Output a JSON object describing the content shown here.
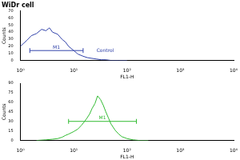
{
  "chart_data": [
    {
      "type": "line",
      "title": "WiDr cell",
      "x_label": "FL1-H",
      "y_label": "Counts",
      "log": "x",
      "grid": false,
      "xlim": [
        1,
        10000
      ],
      "xticks": [
        {
          "value": 1,
          "label": "10⁰"
        },
        {
          "value": 10,
          "label": "10¹"
        },
        {
          "value": 100,
          "label": "10²"
        },
        {
          "value": 1000,
          "label": "10³"
        },
        {
          "value": 10000,
          "label": "10⁴"
        }
      ],
      "ylim": [
        0,
        70
      ],
      "yticks": [
        0,
        10,
        20,
        30,
        40,
        50,
        60,
        70
      ],
      "series": [
        {
          "name": "Control",
          "color": "#3344aa",
          "x": [
            1,
            1.3,
            1.6,
            2,
            2.5,
            3,
            3.5,
            4,
            5,
            6,
            7,
            8,
            10,
            12,
            15,
            18,
            22,
            27,
            33,
            40,
            50,
            70,
            100
          ],
          "values": [
            20,
            28,
            35,
            38,
            44,
            42,
            46,
            40,
            37,
            30,
            26,
            20,
            14,
            9,
            6,
            4,
            3,
            2,
            1,
            1,
            0,
            0,
            0
          ]
        }
      ],
      "annotations": [
        {
          "text": "M1",
          "x": [
            1.5,
            15
          ],
          "y": 14
        },
        {
          "text": "Control",
          "x": 25,
          "y": 14
        }
      ]
    },
    {
      "type": "line",
      "x_label": "FL1-H",
      "y_label": "Counts",
      "log": "x",
      "grid": false,
      "xlim": [
        1,
        10000
      ],
      "xticks": [
        {
          "value": 1,
          "label": "10⁰"
        },
        {
          "value": 10,
          "label": "10¹"
        },
        {
          "value": 100,
          "label": "10²"
        },
        {
          "value": 1000,
          "label": "10³"
        },
        {
          "value": 10000,
          "label": "10⁴"
        }
      ],
      "ylim": [
        0,
        90
      ],
      "yticks": [
        0,
        15,
        30,
        45,
        60,
        75,
        90
      ],
      "series": [
        {
          "color": "#33bb33",
          "x": [
            2,
            3,
            4,
            5,
            6,
            7,
            8,
            10,
            12,
            14,
            16,
            18,
            20,
            22,
            25,
            28,
            32,
            36,
            40,
            45,
            50,
            60,
            70,
            80,
            100,
            130,
            170,
            250
          ],
          "values": [
            0,
            1,
            2,
            3,
            5,
            8,
            10,
            14,
            18,
            24,
            30,
            36,
            42,
            50,
            58,
            70,
            64,
            55,
            45,
            35,
            26,
            16,
            10,
            6,
            3,
            1,
            0,
            0
          ]
        }
      ],
      "annotations": [
        {
          "text": "M1",
          "x": [
            8,
            150
          ],
          "y": 30
        }
      ]
    }
  ]
}
